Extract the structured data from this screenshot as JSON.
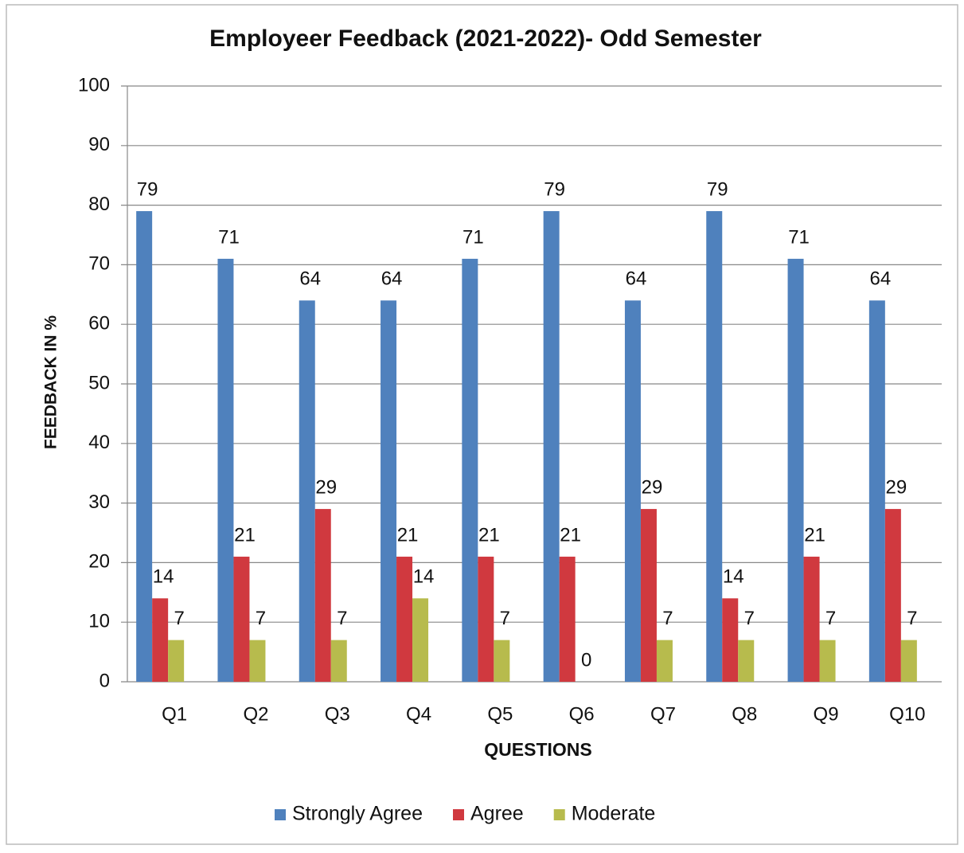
{
  "chart_data": {
    "type": "bar",
    "title": "Employeer Feedback (2021-2022)- Odd Semester",
    "x_label": "QUESTIONS",
    "y_label": "FEEDBACK IN %",
    "categories": [
      "Q1",
      "Q2",
      "Q3",
      "Q4",
      "Q5",
      "Q6",
      "Q7",
      "Q8",
      "Q9",
      "Q10"
    ],
    "series": [
      {
        "name": "Strongly Agree",
        "color": "#4f81bd",
        "values": [
          79,
          71,
          64,
          64,
          71,
          79,
          64,
          79,
          71,
          64
        ]
      },
      {
        "name": "Agree",
        "color": "#d0393f",
        "values": [
          14,
          21,
          29,
          21,
          21,
          21,
          29,
          14,
          21,
          29
        ]
      },
      {
        "name": "Moderate",
        "color": "#b7bb4d",
        "values": [
          7,
          7,
          7,
          14,
          7,
          0,
          7,
          7,
          7,
          7
        ]
      }
    ],
    "ylim": [
      0,
      100
    ],
    "yticks": [
      0,
      10,
      20,
      30,
      40,
      50,
      60,
      70,
      80,
      90,
      100
    ],
    "grid": true,
    "legend": "bottom"
  }
}
